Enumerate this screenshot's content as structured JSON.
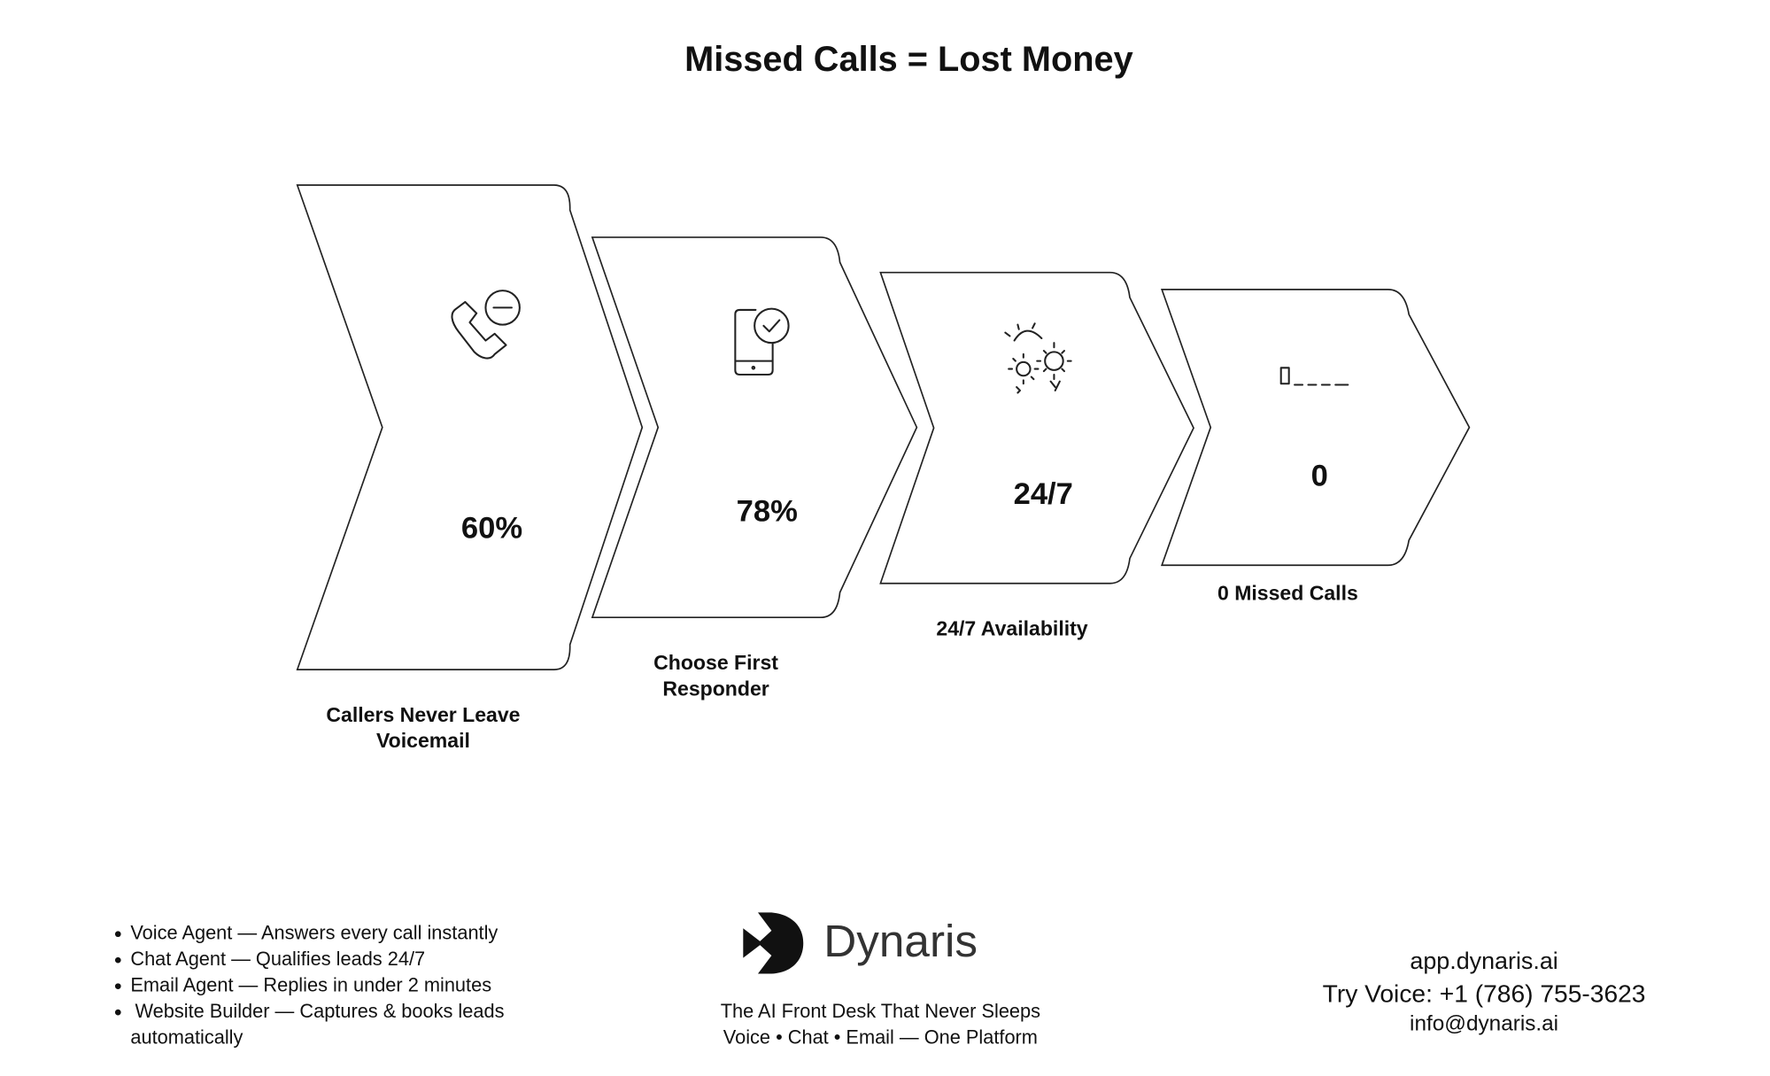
{
  "title": "Missed Calls = Lost Money",
  "steps": [
    {
      "value": "60%",
      "label": [
        "Callers Never Leave",
        "Voicemail"
      ]
    },
    {
      "value": "78%",
      "label": [
        "Choose First",
        "Responder"
      ]
    },
    {
      "value": "24/7",
      "label": [
        "24/7 Availability"
      ]
    },
    {
      "value": "0",
      "label": [
        "0 Missed Calls"
      ]
    }
  ],
  "features": [
    [
      "Voice Agent — Answers every call instantly"
    ],
    [
      "Chat Agent — Qualifies leads 24/7"
    ],
    [
      "Email Agent — Replies in under 2 minutes"
    ],
    [
      "Website Builder — Captures & books leads",
      "automatically"
    ]
  ],
  "brand": {
    "name": "Dynaris",
    "tagline": [
      "The AI Front Desk That Never Sleeps",
      "Voice • Chat • Email — One Platform"
    ]
  },
  "contact": [
    "app.dynaris.ai",
    "Try Voice: +1 (786) 755-3623",
    "info@dynaris.ai"
  ]
}
